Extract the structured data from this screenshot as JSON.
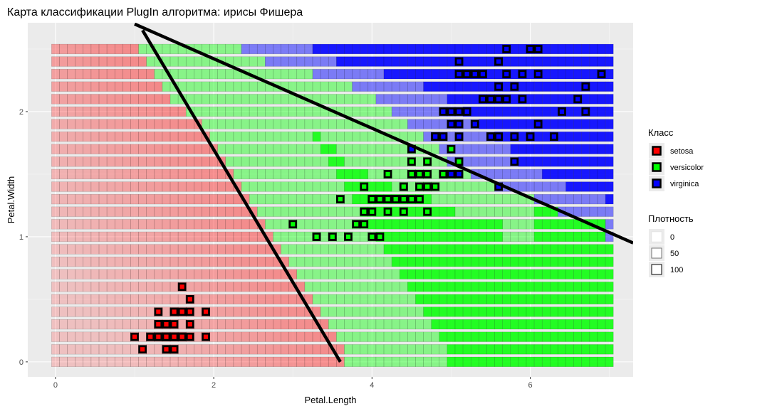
{
  "chart_data": {
    "type": "heatmap",
    "title": "Карта классификации PlugIn алгоритма: ирисы Фишера",
    "xlabel": "Petal.Length",
    "ylabel": "Petal.Width",
    "xlim": [
      -0.35,
      7.3
    ],
    "ylim": [
      -0.12,
      2.71
    ],
    "x_ticks": [
      0,
      2,
      4,
      6
    ],
    "y_ticks": [
      0,
      1,
      2
    ],
    "x_tick_labels": [
      "0",
      "2",
      "4",
      "6"
    ],
    "y_tick_labels": [
      "0",
      "1",
      "2"
    ],
    "grid": true,
    "legend_position": "right",
    "grid_cells": {
      "x_from": 0.0,
      "x_to": 7.0,
      "x_step": 0.1,
      "y_from": 0.0,
      "y_to": 2.5,
      "y_step": 0.1,
      "boundary_setosa_versicolor": [
        [
          0.0,
          3.65
        ],
        [
          0.1,
          3.65
        ],
        [
          0.2,
          3.55
        ],
        [
          0.3,
          3.45
        ],
        [
          0.4,
          3.35
        ],
        [
          0.5,
          3.25
        ],
        [
          0.6,
          3.15
        ],
        [
          0.7,
          3.05
        ],
        [
          0.8,
          2.95
        ],
        [
          0.9,
          2.85
        ],
        [
          1.0,
          2.75
        ],
        [
          1.1,
          2.65
        ],
        [
          1.2,
          2.55
        ],
        [
          1.3,
          2.45
        ],
        [
          1.4,
          2.35
        ],
        [
          1.5,
          2.25
        ],
        [
          1.6,
          2.15
        ],
        [
          1.7,
          2.05
        ],
        [
          1.8,
          1.95
        ],
        [
          1.9,
          1.85
        ],
        [
          2.0,
          1.65
        ],
        [
          2.1,
          1.45
        ],
        [
          2.2,
          1.35
        ],
        [
          2.3,
          1.25
        ],
        [
          2.4,
          1.15
        ],
        [
          2.5,
          1.05
        ]
      ],
      "boundary_versicolor_virginica": [
        [
          1.0,
          7.0
        ],
        [
          1.1,
          7.0
        ],
        [
          1.2,
          6.35
        ],
        [
          1.3,
          6.05
        ],
        [
          1.4,
          5.55
        ],
        [
          1.5,
          5.25
        ],
        [
          1.6,
          4.95
        ],
        [
          1.7,
          4.85
        ],
        [
          1.8,
          4.65
        ],
        [
          1.9,
          4.45
        ],
        [
          2.0,
          4.25
        ],
        [
          2.1,
          4.05
        ],
        [
          2.2,
          3.75
        ],
        [
          2.3,
          3.25
        ],
        [
          2.4,
          2.65
        ],
        [
          2.5,
          2.35
        ]
      ]
    },
    "lines": [
      {
        "name": "boundary-line-1",
        "x": [
          1.1,
          3.6
        ],
        "y": [
          2.65,
          0.0
        ]
      },
      {
        "name": "boundary-line-2",
        "x": [
          1.0,
          7.3
        ],
        "y": [
          2.7,
          0.95
        ]
      }
    ],
    "series": [
      {
        "name": "setosa",
        "color": "#ff0000",
        "points": [
          [
            1.4,
            0.2
          ],
          [
            1.4,
            0.2
          ],
          [
            1.3,
            0.2
          ],
          [
            1.5,
            0.2
          ],
          [
            1.4,
            0.2
          ],
          [
            1.7,
            0.4
          ],
          [
            1.4,
            0.3
          ],
          [
            1.5,
            0.2
          ],
          [
            1.4,
            0.2
          ],
          [
            1.5,
            0.1
          ],
          [
            1.5,
            0.2
          ],
          [
            1.6,
            0.2
          ],
          [
            1.4,
            0.1
          ],
          [
            1.1,
            0.1
          ],
          [
            1.2,
            0.2
          ],
          [
            1.5,
            0.4
          ],
          [
            1.3,
            0.4
          ],
          [
            1.4,
            0.3
          ],
          [
            1.7,
            0.3
          ],
          [
            1.5,
            0.3
          ],
          [
            1.7,
            0.2
          ],
          [
            1.5,
            0.4
          ],
          [
            1.0,
            0.2
          ],
          [
            1.7,
            0.5
          ],
          [
            1.9,
            0.2
          ],
          [
            1.6,
            0.2
          ],
          [
            1.6,
            0.4
          ],
          [
            1.5,
            0.2
          ],
          [
            1.4,
            0.2
          ],
          [
            1.6,
            0.2
          ],
          [
            1.6,
            0.2
          ],
          [
            1.5,
            0.4
          ],
          [
            1.5,
            0.1
          ],
          [
            1.4,
            0.2
          ],
          [
            1.5,
            0.2
          ],
          [
            1.2,
            0.2
          ],
          [
            1.3,
            0.2
          ],
          [
            1.4,
            0.1
          ],
          [
            1.3,
            0.2
          ],
          [
            1.5,
            0.2
          ],
          [
            1.3,
            0.3
          ],
          [
            1.3,
            0.3
          ],
          [
            1.3,
            0.2
          ],
          [
            1.6,
            0.6
          ],
          [
            1.9,
            0.4
          ],
          [
            1.4,
            0.3
          ],
          [
            1.6,
            0.2
          ],
          [
            1.4,
            0.2
          ],
          [
            1.5,
            0.2
          ],
          [
            1.4,
            0.2
          ]
        ]
      },
      {
        "name": "versicolor",
        "color": "#00ff00",
        "points": [
          [
            4.7,
            1.4
          ],
          [
            4.5,
            1.5
          ],
          [
            4.9,
            1.5
          ],
          [
            4.0,
            1.3
          ],
          [
            4.6,
            1.5
          ],
          [
            4.5,
            1.3
          ],
          [
            4.7,
            1.6
          ],
          [
            3.3,
            1.0
          ],
          [
            4.6,
            1.3
          ],
          [
            3.9,
            1.4
          ],
          [
            3.5,
            1.0
          ],
          [
            4.2,
            1.5
          ],
          [
            4.0,
            1.0
          ],
          [
            4.7,
            1.4
          ],
          [
            3.6,
            1.3
          ],
          [
            4.4,
            1.4
          ],
          [
            4.5,
            1.5
          ],
          [
            4.1,
            1.0
          ],
          [
            4.5,
            1.5
          ],
          [
            3.9,
            1.1
          ],
          [
            4.8,
            1.8
          ],
          [
            4.0,
            1.3
          ],
          [
            4.9,
            1.5
          ],
          [
            4.7,
            1.2
          ],
          [
            4.3,
            1.3
          ],
          [
            4.4,
            1.4
          ],
          [
            4.8,
            1.4
          ],
          [
            5.0,
            1.7
          ],
          [
            4.5,
            1.5
          ],
          [
            3.5,
            1.0
          ],
          [
            3.8,
            1.1
          ],
          [
            3.7,
            1.0
          ],
          [
            3.9,
            1.2
          ],
          [
            5.1,
            1.6
          ],
          [
            4.5,
            1.5
          ],
          [
            4.5,
            1.6
          ],
          [
            4.7,
            1.5
          ],
          [
            4.4,
            1.3
          ],
          [
            4.1,
            1.3
          ],
          [
            4.0,
            1.3
          ],
          [
            4.4,
            1.2
          ],
          [
            4.6,
            1.4
          ],
          [
            4.0,
            1.2
          ],
          [
            3.3,
            1.0
          ],
          [
            4.2,
            1.3
          ],
          [
            4.2,
            1.2
          ],
          [
            4.2,
            1.3
          ],
          [
            4.3,
            1.3
          ],
          [
            3.0,
            1.1
          ],
          [
            4.1,
            1.3
          ]
        ]
      },
      {
        "name": "virginica",
        "color": "#0000ff",
        "points": [
          [
            6.0,
            2.5
          ],
          [
            5.1,
            1.9
          ],
          [
            5.9,
            2.1
          ],
          [
            5.6,
            1.8
          ],
          [
            5.8,
            2.2
          ],
          [
            6.6,
            2.1
          ],
          [
            4.5,
            1.7
          ],
          [
            6.3,
            1.8
          ],
          [
            5.8,
            1.8
          ],
          [
            6.1,
            2.5
          ],
          [
            5.1,
            2.0
          ],
          [
            5.3,
            1.9
          ],
          [
            5.5,
            2.1
          ],
          [
            5.0,
            2.0
          ],
          [
            5.1,
            2.4
          ],
          [
            5.3,
            2.3
          ],
          [
            5.5,
            1.8
          ],
          [
            6.7,
            2.2
          ],
          [
            6.9,
            2.3
          ],
          [
            5.0,
            1.5
          ],
          [
            5.7,
            2.3
          ],
          [
            4.9,
            2.0
          ],
          [
            6.7,
            2.0
          ],
          [
            4.9,
            1.8
          ],
          [
            5.7,
            2.1
          ],
          [
            6.0,
            1.8
          ],
          [
            4.8,
            1.8
          ],
          [
            4.9,
            1.8
          ],
          [
            5.6,
            2.1
          ],
          [
            5.8,
            1.6
          ],
          [
            6.1,
            1.9
          ],
          [
            6.4,
            2.0
          ],
          [
            5.6,
            2.2
          ],
          [
            5.1,
            1.5
          ],
          [
            5.6,
            1.4
          ],
          [
            6.1,
            2.3
          ],
          [
            5.6,
            2.4
          ],
          [
            5.5,
            1.8
          ],
          [
            4.8,
            1.8
          ],
          [
            5.4,
            2.1
          ],
          [
            5.6,
            2.4
          ],
          [
            5.1,
            2.3
          ],
          [
            5.1,
            1.9
          ],
          [
            5.9,
            2.3
          ],
          [
            5.7,
            2.5
          ],
          [
            5.2,
            2.3
          ],
          [
            5.0,
            1.9
          ],
          [
            5.2,
            2.0
          ],
          [
            5.4,
            2.3
          ],
          [
            5.1,
            1.8
          ]
        ]
      }
    ],
    "legend_class": {
      "title": "Класс",
      "items": [
        {
          "label": "setosa",
          "color": "#ff0000"
        },
        {
          "label": "versicolor",
          "color": "#00ff00"
        },
        {
          "label": "virginica",
          "color": "#0000ff"
        }
      ]
    },
    "legend_density": {
      "title": "Плотность",
      "items": [
        {
          "label": "0",
          "value": 0
        },
        {
          "label": "50",
          "value": 50
        },
        {
          "label": "100",
          "value": 100
        }
      ]
    }
  }
}
